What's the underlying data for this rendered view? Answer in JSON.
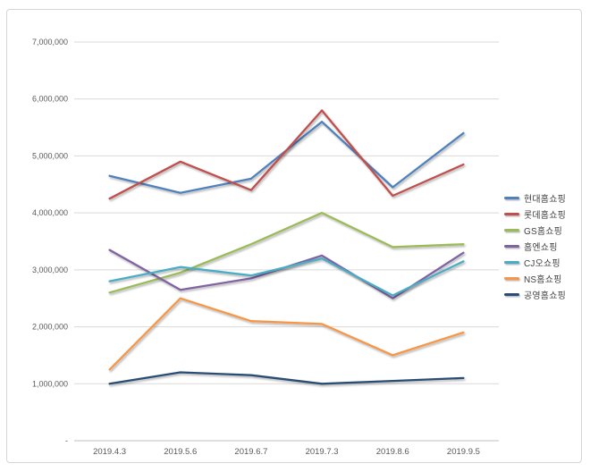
{
  "chart_data": {
    "type": "line",
    "title": "",
    "xlabel": "",
    "ylabel": "",
    "categories": [
      "2019.4.3",
      "2019.5.6",
      "2019.6.7",
      "2019.7.3",
      "2019.8.6",
      "2019.9.5"
    ],
    "series": [
      {
        "name": "현대홈쇼핑",
        "color": "#4F81BD",
        "values": [
          4650000,
          4350000,
          4600000,
          5600000,
          4450000,
          5400000
        ]
      },
      {
        "name": "롯데홈쇼핑",
        "color": "#C0504D",
        "values": [
          4250000,
          4900000,
          4400000,
          5800000,
          4300000,
          4850000
        ]
      },
      {
        "name": "GS홈쇼핑",
        "color": "#9BBB59",
        "values": [
          2600000,
          2950000,
          3450000,
          4000000,
          3400000,
          3450000
        ]
      },
      {
        "name": "홈엔쇼핑",
        "color": "#8064A2",
        "values": [
          3350000,
          2650000,
          2850000,
          3250000,
          2500000,
          3300000
        ]
      },
      {
        "name": "CJ오쇼핑",
        "color": "#4BACC6",
        "values": [
          2800000,
          3050000,
          2900000,
          3200000,
          2550000,
          3150000
        ]
      },
      {
        "name": "NS홈쇼핑",
        "color": "#F79646",
        "values": [
          1250000,
          2500000,
          2100000,
          2050000,
          1500000,
          1900000
        ]
      },
      {
        "name": "공영홈쇼핑",
        "color": "#2C4D75",
        "values": [
          1000000,
          1200000,
          1150000,
          1000000,
          1050000,
          1100000
        ]
      }
    ],
    "y_axis": {
      "min": 0,
      "max": 7000000,
      "ticks": [
        {
          "label": "7,000,000",
          "value": 7000000
        },
        {
          "label": "6,000,000",
          "value": 6000000
        },
        {
          "label": "5,000,000",
          "value": 5000000
        },
        {
          "label": "4,000,000",
          "value": 4000000
        },
        {
          "label": "3,000,000",
          "value": 3000000
        },
        {
          "label": "2,000,000",
          "value": 2000000
        },
        {
          "label": "1,000,000",
          "value": 1000000
        },
        {
          "label": "-",
          "value": 0
        }
      ]
    },
    "grid": true,
    "legend_position": "right"
  },
  "colors": {
    "background": "#FFFFFF",
    "frame_border": "#D6D6D6",
    "gridline": "#D9D9D9",
    "axis_line": "#BFBFBF",
    "tick_text": "#595959",
    "legend_text": "#404040"
  }
}
